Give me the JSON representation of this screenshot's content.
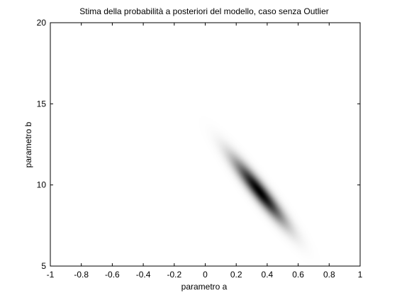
{
  "chart_data": {
    "type": "heatmap",
    "title": "Stima della probabilità a posteriori del modello, caso senza Outlier",
    "xlabel": "parametro a",
    "ylabel": "parametro b",
    "xlim": [
      -1,
      1
    ],
    "ylim": [
      5,
      20
    ],
    "x_ticks": [
      -1,
      -0.8,
      -0.6,
      -0.4,
      -0.2,
      0,
      0.2,
      0.4,
      0.6,
      0.8,
      1
    ],
    "x_tick_labels": [
      "-1",
      "-0.8",
      "-0.6",
      "-0.4",
      "-0.2",
      "0",
      "0.2",
      "0.4",
      "0.6",
      "0.8",
      "1"
    ],
    "y_ticks": [
      5,
      10,
      15,
      20
    ],
    "y_tick_labels": [
      "5",
      "10",
      "15",
      "20"
    ],
    "grid": false,
    "colormap": "inverted-gray",
    "density": {
      "mean_a": 0.35,
      "mean_b": 9.6,
      "sd_a": 0.11,
      "sd_b": 1.3,
      "correlation": -0.93,
      "peak": 1.0
    },
    "colors": {
      "background": "#ffffff",
      "axis": "#000000",
      "peak": "#000000"
    }
  }
}
